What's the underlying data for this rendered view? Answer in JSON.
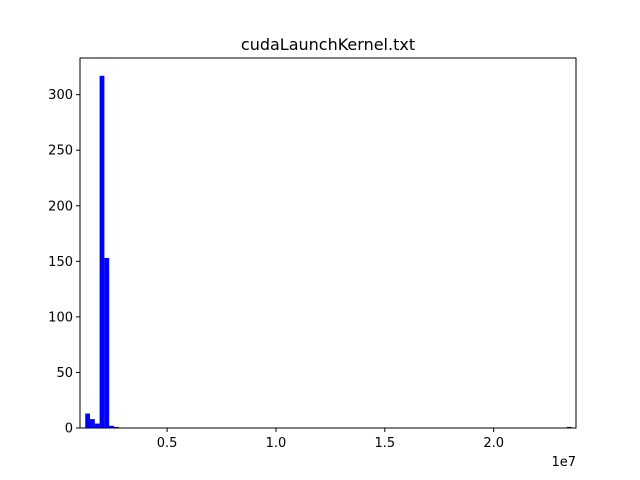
{
  "chart_data": {
    "type": "bar",
    "title": "cudaLaunchKernel.txt",
    "xlabel": "",
    "ylabel": "",
    "x_offset_label": "1e7",
    "xlim": [
      1000000,
      23780000
    ],
    "ylim": [
      0,
      333
    ],
    "x_ticks": [
      {
        "value": 5000000,
        "label": "0.5"
      },
      {
        "value": 10000000,
        "label": "1.0"
      },
      {
        "value": 15000000,
        "label": "1.5"
      },
      {
        "value": 20000000,
        "label": "2.0"
      }
    ],
    "y_ticks": [
      {
        "value": 0,
        "label": "0"
      },
      {
        "value": 50,
        "label": "50"
      },
      {
        "value": 100,
        "label": "100"
      },
      {
        "value": 150,
        "label": "150"
      },
      {
        "value": 200,
        "label": "200"
      },
      {
        "value": 250,
        "label": "250"
      },
      {
        "value": 300,
        "label": "300"
      }
    ],
    "bar_color": "#0000ff",
    "grid": false,
    "bins": [
      {
        "x0": 1240000,
        "x1": 1460000,
        "count": 13
      },
      {
        "x0": 1460000,
        "x1": 1680000,
        "count": 8
      },
      {
        "x0": 1680000,
        "x1": 1900000,
        "count": 4
      },
      {
        "x0": 1900000,
        "x1": 2120000,
        "count": 317
      },
      {
        "x0": 2120000,
        "x1": 2340000,
        "count": 153
      },
      {
        "x0": 2340000,
        "x1": 2560000,
        "count": 2
      },
      {
        "x0": 2560000,
        "x1": 2780000,
        "count": 1
      },
      {
        "x0": 23360000,
        "x1": 23580000,
        "count": 1
      }
    ]
  }
}
